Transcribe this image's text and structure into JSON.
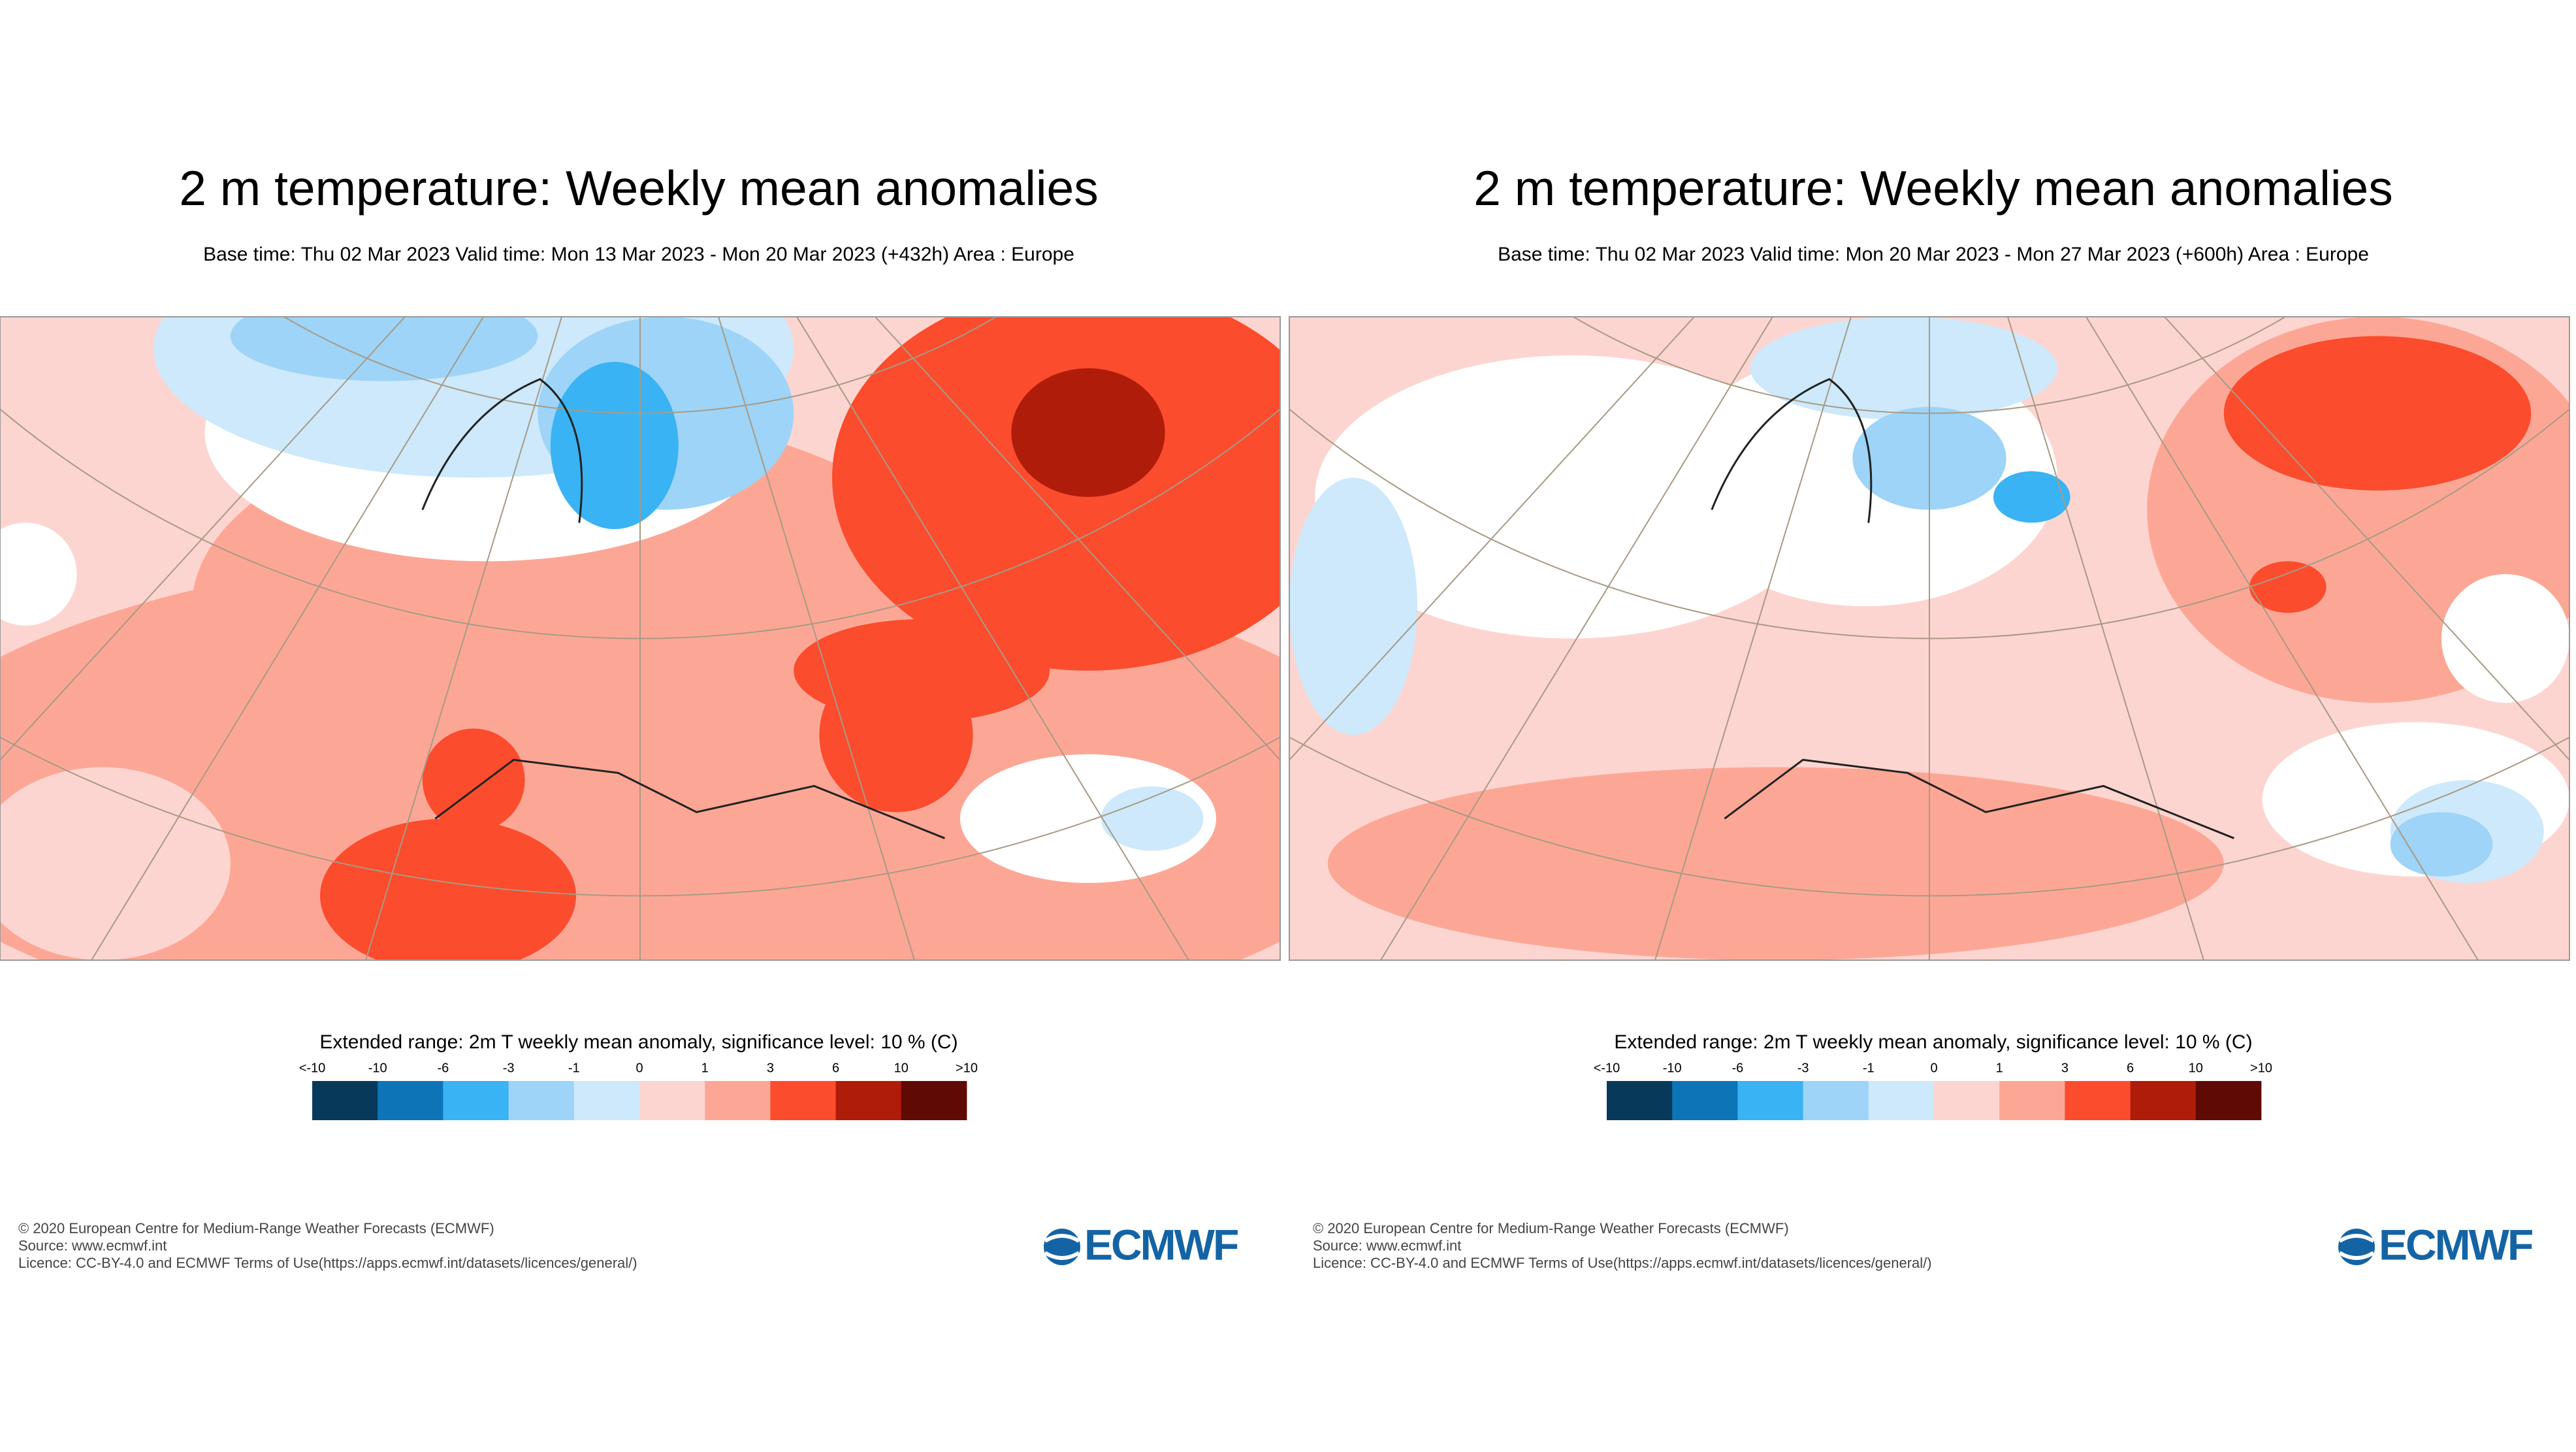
{
  "panels": [
    {
      "title": "2 m temperature: Weekly mean anomalies",
      "subtitle": "Base time: Thu 02 Mar 2023 Valid time: Mon 13 Mar 2023 - Mon 20 Mar 2023 (+432h) Area : Europe",
      "legend": {
        "title": "Extended range: 2m T weekly mean anomaly, significance level: 10 % (C)",
        "labels": [
          "<-10",
          "-10",
          "-6",
          "-3",
          "-1",
          "0",
          "1",
          "3",
          "6",
          "10",
          ">10"
        ]
      },
      "footer": [
        "© 2020 European Centre for Medium-Range Weather Forecasts (ECMWF)",
        "Source: www.ecmwf.int",
        "Licence: CC-BY-4.0 and ECMWF Terms of Use(https://apps.ecmwf.int/datasets/licences/general/)"
      ],
      "logo": "ECMWF"
    },
    {
      "title": "2 m temperature: Weekly mean anomalies",
      "subtitle": "Base time: Thu 02 Mar 2023 Valid time: Mon 20 Mar 2023 - Mon 27 Mar 2023 (+600h) Area : Europe",
      "legend": {
        "title": "Extended range: 2m T weekly mean anomaly, significance level: 10 % (C)",
        "labels": [
          "<-10",
          "-10",
          "-6",
          "-3",
          "-1",
          "0",
          "1",
          "3",
          "6",
          "10",
          ">10"
        ]
      },
      "footer": [
        "© 2020 European Centre for Medium-Range Weather Forecasts (ECMWF)",
        "Source: www.ecmwf.int",
        "Licence: CC-BY-4.0 and ECMWF Terms of Use(https://apps.ecmwf.int/datasets/licences/general/)"
      ],
      "logo": "ECMWF"
    }
  ]
}
